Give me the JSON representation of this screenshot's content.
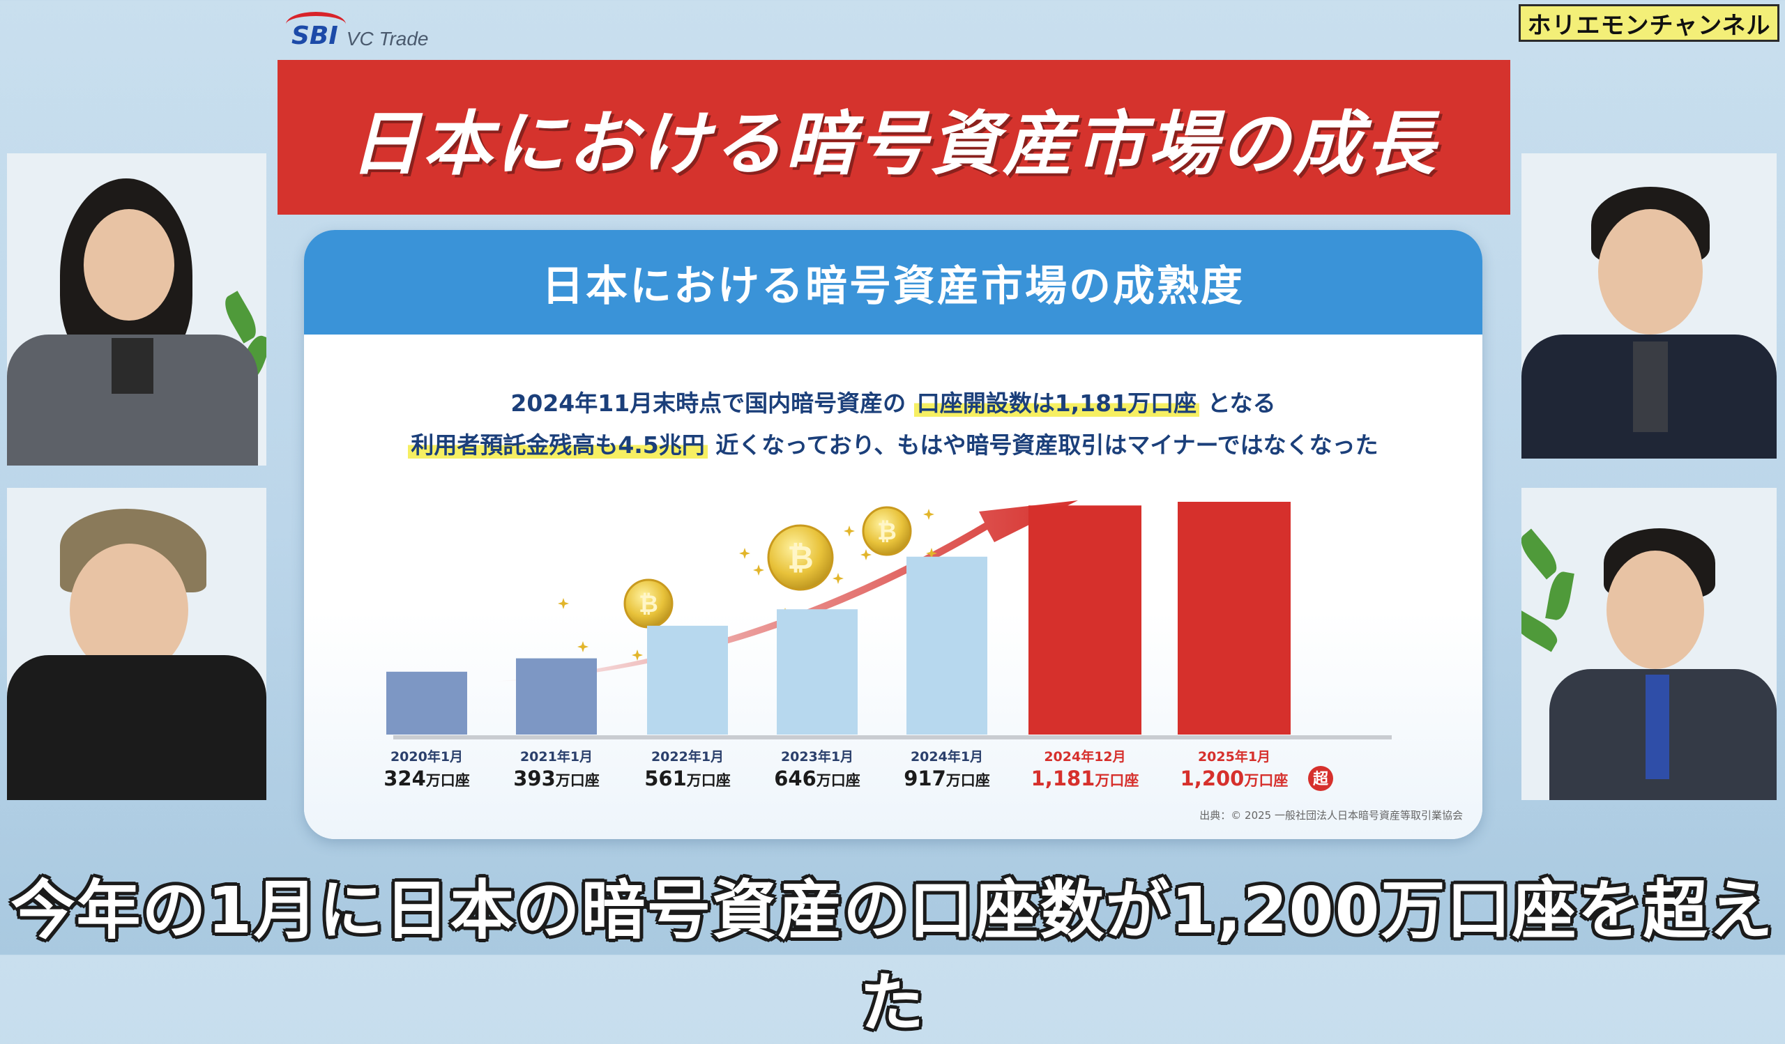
{
  "brand": {
    "logo": "SBI",
    "name": "VC Trade"
  },
  "channel": "ホリエモンチャンネル",
  "banner_title": "日本における暗号資産市場の成長",
  "panel": {
    "header": "日本における暗号資産市場の成熟度",
    "line1_pre": "2024年11月末時点で国内暗号資産の",
    "line1_hl": "口座開設数は1,181万口座",
    "line1_post": "となる",
    "line2_hl": "利用者預託金残高も4.5兆円",
    "line2_post": "近くなっており、もはや暗号資産取引はマイナーではなくなった",
    "source": "出典：© 2025 一般社団法人日本暗号資産等取引業協会"
  },
  "chart_data": {
    "type": "bar",
    "categories": [
      "2020年1月",
      "2021年1月",
      "2022年1月",
      "2023年1月",
      "2024年1月",
      "2024年12月",
      "2025年1月"
    ],
    "values": [
      324,
      393,
      561,
      646,
      917,
      1181,
      1200
    ],
    "value_labels": [
      "324万口座",
      "393万口座",
      "561万口座",
      "646万口座",
      "917万口座",
      "1,181万口座",
      "1,200万口座"
    ],
    "unit": "万口座",
    "badge": {
      "category": "2025年1月",
      "text": "超"
    },
    "colors": [
      "#7d97c4",
      "#7d97c4",
      "#b7d8ee",
      "#b7d8ee",
      "#b7d8ee",
      "#d6302c",
      "#d6302c"
    ],
    "highlight_label_color": "#d6302c",
    "normal_label_color": "#2a3f6b"
  },
  "subtitle": "今年の1月に日本の暗号資産の口座数が1,200万口座を超えた",
  "icons": [
    "bitcoin-coin-icon",
    "sparkle-icon",
    "growth-arrow-icon"
  ]
}
